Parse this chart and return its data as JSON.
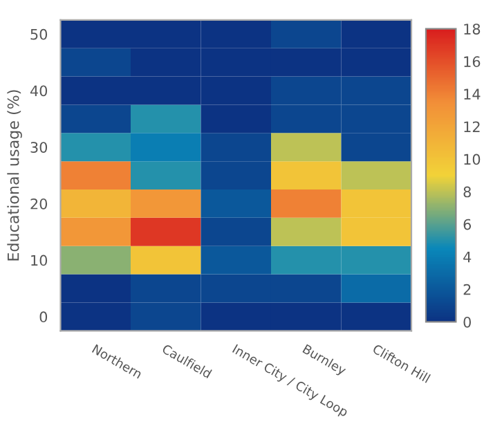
{
  "chart_data": {
    "type": "heatmap",
    "ylabel": "Educational usage (%)",
    "categories": [
      "Northern",
      "Caulfield",
      "Inner City / City Loop",
      "Burnley",
      "Clifton Hill"
    ],
    "y_categories": [
      "50",
      null,
      "40",
      null,
      "30",
      null,
      "20",
      null,
      "10",
      null,
      "0"
    ],
    "cells": [
      [
        0,
        0,
        0,
        1,
        0
      ],
      [
        1,
        0,
        0,
        0,
        0
      ],
      [
        0,
        0,
        0,
        1,
        1
      ],
      [
        1,
        5,
        0,
        1,
        1
      ],
      [
        5,
        4,
        1,
        8,
        1
      ],
      [
        14,
        5,
        1,
        10,
        8
      ],
      [
        11,
        13,
        2,
        14,
        10
      ],
      [
        13,
        17,
        1,
        8,
        10
      ],
      [
        7,
        10,
        2,
        5,
        5
      ],
      [
        0,
        1,
        1,
        1,
        3
      ],
      [
        0,
        1,
        0,
        0,
        0
      ]
    ],
    "clim": [
      0,
      18
    ],
    "cticks": [
      0,
      2,
      4,
      6,
      8,
      10,
      12,
      14,
      16,
      18
    ],
    "colors": [
      "#0c3383",
      "#0a88ba",
      "#f2d338",
      "#f28f38",
      "#d91e1e"
    ]
  }
}
